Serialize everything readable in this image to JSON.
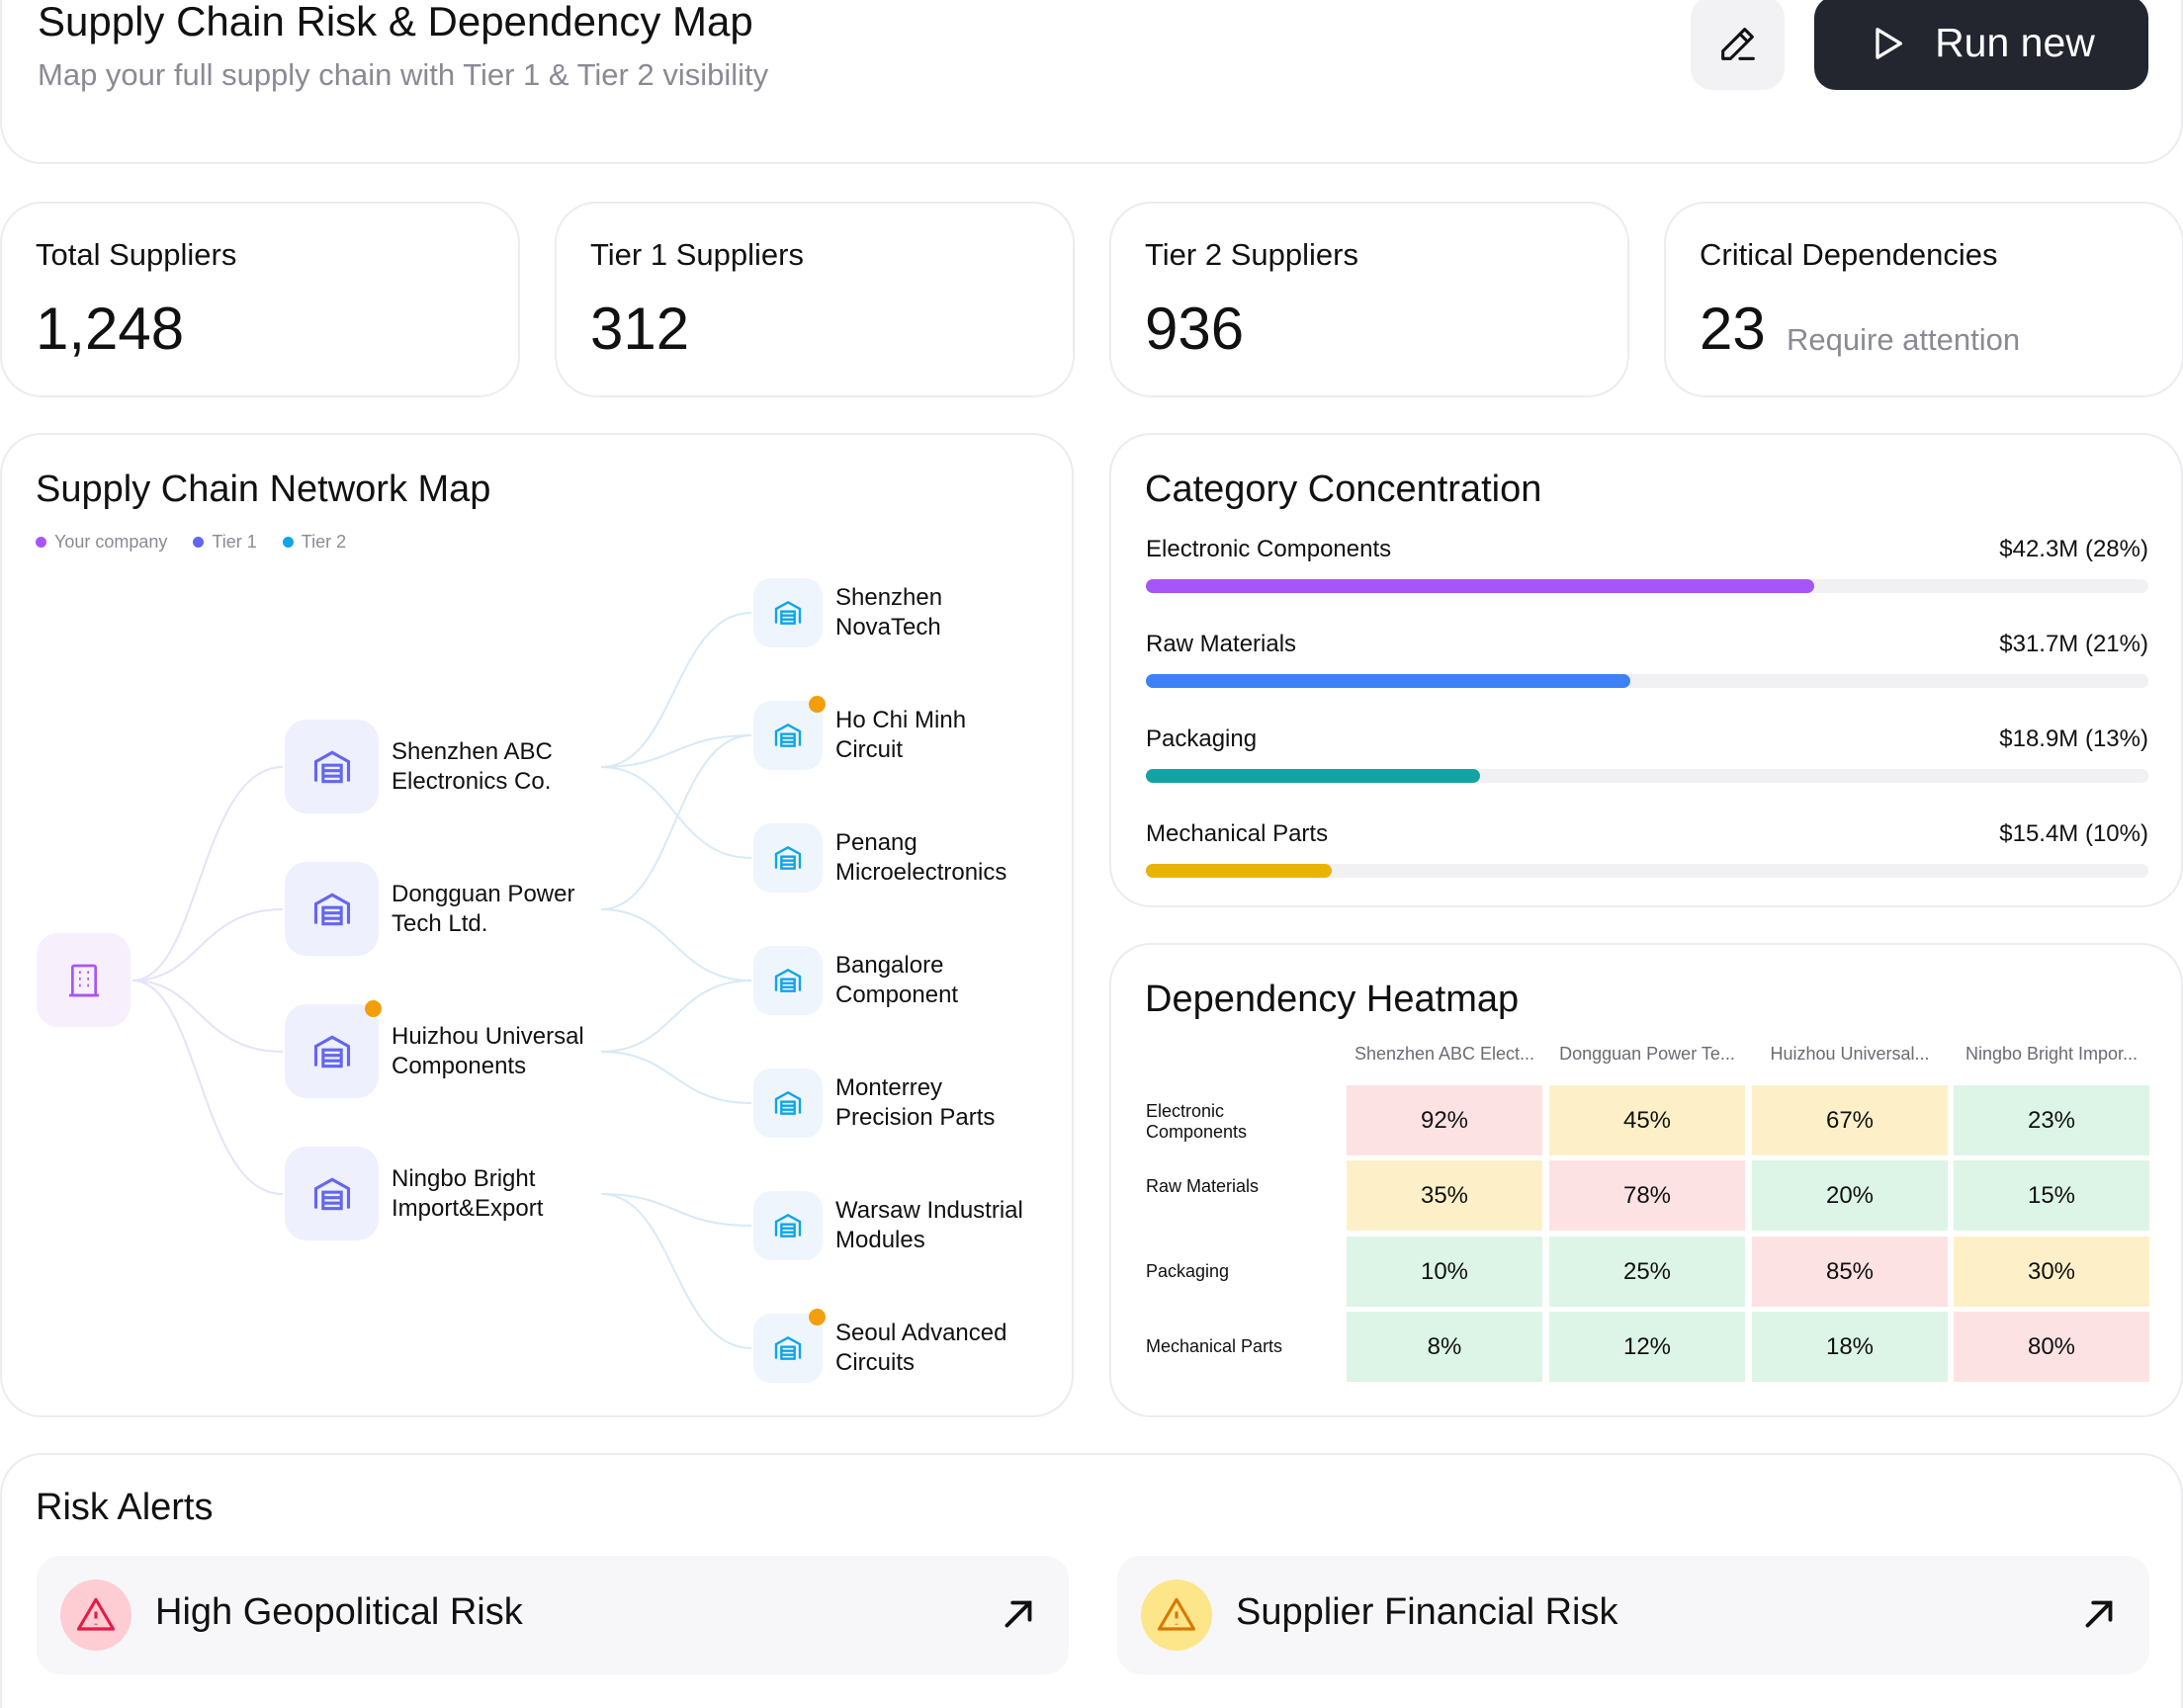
{
  "header": {
    "title": "Supply Chain Risk & Dependency Map",
    "subtitle": "Map your full supply chain with Tier 1 &  Tier 2 visibility",
    "edit_icon": "pencil-icon",
    "run_label": "Run new",
    "run_icon": "play-icon"
  },
  "stats": [
    {
      "label": "Total Suppliers",
      "value": "1,248",
      "note": ""
    },
    {
      "label": "Tier 1 Suppliers",
      "value": "312",
      "note": ""
    },
    {
      "label": "Tier 2 Suppliers",
      "value": "936",
      "note": ""
    },
    {
      "label": "Critical Dependencies",
      "value": "23",
      "note": "Require attention"
    }
  ],
  "network": {
    "title": "Supply Chain Network Map",
    "legend": [
      {
        "label": "Your company",
        "color": "#a855f7"
      },
      {
        "label": "Tier 1",
        "color": "#6366f1"
      },
      {
        "label": "Tier 2",
        "color": "#0ea5e9"
      }
    ],
    "company_icon": "building-icon",
    "tier1": [
      {
        "name_line1": "Shenzhen ABC",
        "name_line2": "Electronics Co.",
        "alert": false
      },
      {
        "name_line1": "Dongguan Power",
        "name_line2": "Tech Ltd.",
        "alert": false
      },
      {
        "name_line1": "Huizhou Universal",
        "name_line2": "Components",
        "alert": true
      },
      {
        "name_line1": "Ningbo Bright",
        "name_line2": "Import&Export",
        "alert": false
      }
    ],
    "tier2": [
      {
        "name_line1": "Shenzhen",
        "name_line2": "NovaTech",
        "alert": false
      },
      {
        "name_line1": "Ho Chi Minh",
        "name_line2": "Circuit",
        "alert": true
      },
      {
        "name_line1": "Penang",
        "name_line2": "Microelectronics",
        "alert": false
      },
      {
        "name_line1": "Bangalore",
        "name_line2": "Component",
        "alert": false
      },
      {
        "name_line1": "Monterrey",
        "name_line2": "Precision Parts",
        "alert": false
      },
      {
        "name_line1": "Warsaw Industrial",
        "name_line2": "Modules",
        "alert": false
      },
      {
        "name_line1": "Seoul Advanced",
        "name_line2": "Circuits",
        "alert": true
      }
    ],
    "tier1_icon": "warehouse-icon",
    "tier2_icon": "warehouse-icon",
    "alert_color": "#f59e0b"
  },
  "category": {
    "title": "Category Concentration",
    "items": [
      {
        "name": "Electronic Components",
        "amount": "$42.3M (28%)",
        "fill": 0.667,
        "color": "#a855f7"
      },
      {
        "name": "Raw Materials",
        "amount": "$31.7M (21%)",
        "fill": 0.483,
        "color": "#3b82f6"
      },
      {
        "name": "Packaging",
        "amount": "$18.9M (13%)",
        "fill": 0.333,
        "color": "#14a3a3"
      },
      {
        "name": "Mechanical Parts",
        "amount": "$15.4M (10%)",
        "fill": 0.185,
        "color": "#eab308"
      }
    ]
  },
  "heatmap": {
    "title": "Dependency Heatmap",
    "columns": [
      "Shenzhen ABC Elect...",
      "Dongguan Power Te...",
      "Huizhou Universal...",
      "Ningbo Bright Impor..."
    ],
    "rows": [
      {
        "label": "Electronic Components",
        "values": [
          "92%",
          "45%",
          "67%",
          "23%"
        ]
      },
      {
        "label": "Raw Materials",
        "values": [
          "35%",
          "78%",
          "20%",
          "15%"
        ]
      },
      {
        "label": "Packaging",
        "values": [
          "10%",
          "25%",
          "85%",
          "30%"
        ]
      },
      {
        "label": "Mechanical Parts",
        "values": [
          "8%",
          "12%",
          "18%",
          "80%"
        ]
      }
    ],
    "colors": {
      "high": "#fde2e4",
      "medium": "#fdf0c8",
      "low": "#dcf5e7"
    }
  },
  "alerts": {
    "title": "Risk Alerts",
    "items": [
      {
        "title": "High Geopolitical Risk",
        "icon": "warning-icon",
        "badge_color": "#fecdd3",
        "icon_color": "#e11d48",
        "action_icon": "arrow-up-right-icon"
      },
      {
        "title": "Supplier Financial Risk",
        "icon": "warning-icon",
        "badge_color": "#fde68a",
        "icon_color": "#d97706",
        "action_icon": "arrow-up-right-icon"
      }
    ]
  }
}
